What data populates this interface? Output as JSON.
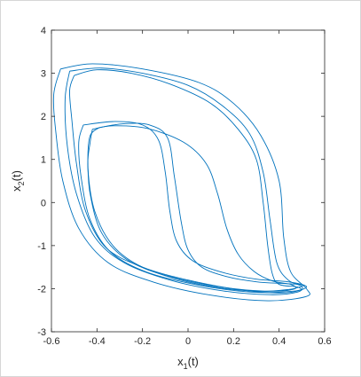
{
  "chart_data": {
    "type": "line",
    "xlabel": "x",
    "xlabel_sub": "1",
    "xlabel_suffix": "(t)",
    "ylabel": "x",
    "ylabel_sub": "2",
    "ylabel_suffix": "(t)",
    "xlim": [
      -0.6,
      0.6
    ],
    "ylim": [
      -3,
      4
    ],
    "xticks": [
      "-0.6",
      "-0.4",
      "-0.2",
      "0",
      "0.2",
      "0.4",
      "0.6"
    ],
    "yticks": [
      "-3",
      "-2",
      "-1",
      "0",
      "1",
      "2",
      "3",
      "4"
    ],
    "grid": false,
    "legend": "none",
    "line_color": "#0072BD",
    "series": [
      {
        "values_xy": [
          [
            -0.39,
            1.74
          ],
          [
            -0.28,
            1.83
          ],
          [
            -0.17,
            1.8
          ],
          [
            -0.09,
            1.5
          ],
          [
            -0.06,
            0.6
          ],
          [
            -0.03,
            -0.45
          ],
          [
            0.0,
            -1.1
          ],
          [
            0.06,
            -1.5
          ],
          [
            0.17,
            -1.72
          ],
          [
            0.3,
            -1.84
          ],
          [
            0.42,
            -1.88
          ],
          [
            0.49,
            -1.9
          ],
          [
            0.5,
            -1.94
          ],
          [
            0.44,
            -2.02
          ],
          [
            0.3,
            -2.06
          ],
          [
            0.1,
            -1.95
          ],
          [
            -0.1,
            -1.7
          ],
          [
            -0.27,
            -1.32
          ],
          [
            -0.38,
            -0.7
          ],
          [
            -0.43,
            0.2
          ],
          [
            -0.44,
            1.0
          ],
          [
            -0.43,
            1.55
          ],
          [
            -0.39,
            1.74
          ]
        ]
      },
      {
        "values_xy": [
          [
            -0.5,
            2.95
          ],
          [
            -0.4,
            3.08
          ],
          [
            -0.25,
            3.0
          ],
          [
            -0.08,
            2.75
          ],
          [
            0.1,
            2.3
          ],
          [
            0.22,
            1.7
          ],
          [
            0.3,
            1.0
          ],
          [
            0.33,
            0.0
          ],
          [
            0.35,
            -1.0
          ],
          [
            0.37,
            -1.65
          ],
          [
            0.4,
            -1.9
          ],
          [
            0.48,
            -1.96
          ],
          [
            0.49,
            -2.04
          ],
          [
            0.4,
            -2.1
          ],
          [
            0.22,
            -2.02
          ],
          [
            0.0,
            -1.8
          ],
          [
            -0.2,
            -1.5
          ],
          [
            -0.36,
            -1.05
          ],
          [
            -0.45,
            -0.2
          ],
          [
            -0.49,
            0.9
          ],
          [
            -0.51,
            1.9
          ],
          [
            -0.52,
            2.6
          ],
          [
            -0.5,
            2.95
          ]
        ]
      },
      {
        "values_xy": [
          [
            -0.52,
            3.05
          ],
          [
            -0.38,
            3.12
          ],
          [
            -0.2,
            3.0
          ],
          [
            0.0,
            2.72
          ],
          [
            0.15,
            2.25
          ],
          [
            0.27,
            1.6
          ],
          [
            0.33,
            0.7
          ],
          [
            0.36,
            -0.4
          ],
          [
            0.39,
            -1.4
          ],
          [
            0.44,
            -1.8
          ],
          [
            0.5,
            -1.95
          ],
          [
            0.48,
            -2.08
          ],
          [
            0.36,
            -2.14
          ],
          [
            0.15,
            -2.05
          ],
          [
            -0.08,
            -1.8
          ],
          [
            -0.28,
            -1.4
          ],
          [
            -0.41,
            -0.8
          ],
          [
            -0.49,
            0.2
          ],
          [
            -0.53,
            1.3
          ],
          [
            -0.54,
            2.4
          ],
          [
            -0.52,
            3.05
          ]
        ]
      },
      {
        "values_xy": [
          [
            -0.56,
            3.1
          ],
          [
            -0.42,
            3.22
          ],
          [
            -0.2,
            3.1
          ],
          [
            0.05,
            2.78
          ],
          [
            0.2,
            2.3
          ],
          [
            0.32,
            1.55
          ],
          [
            0.4,
            0.5
          ],
          [
            0.42,
            -0.8
          ],
          [
            0.45,
            -1.6
          ],
          [
            0.52,
            -2.0
          ],
          [
            0.52,
            -2.18
          ],
          [
            0.35,
            -2.28
          ],
          [
            0.1,
            -2.15
          ],
          [
            -0.15,
            -1.85
          ],
          [
            -0.35,
            -1.4
          ],
          [
            -0.48,
            -0.6
          ],
          [
            -0.55,
            0.5
          ],
          [
            -0.58,
            1.6
          ],
          [
            -0.59,
            2.5
          ],
          [
            -0.56,
            3.1
          ]
        ]
      },
      {
        "values_xy": [
          [
            -0.46,
            1.8
          ],
          [
            -0.32,
            1.88
          ],
          [
            -0.2,
            1.8
          ],
          [
            -0.13,
            1.45
          ],
          [
            -0.1,
            0.7
          ],
          [
            -0.08,
            -0.2
          ],
          [
            -0.05,
            -0.9
          ],
          [
            0.02,
            -1.35
          ],
          [
            0.15,
            -1.62
          ],
          [
            0.3,
            -1.78
          ],
          [
            0.44,
            -1.84
          ],
          [
            0.52,
            -1.95
          ],
          [
            0.46,
            -2.06
          ],
          [
            0.28,
            -2.08
          ],
          [
            0.05,
            -1.92
          ],
          [
            -0.18,
            -1.62
          ],
          [
            -0.34,
            -1.15
          ],
          [
            -0.43,
            -0.4
          ],
          [
            -0.47,
            0.6
          ],
          [
            -0.48,
            1.4
          ],
          [
            -0.46,
            1.8
          ]
        ]
      },
      {
        "values_xy": [
          [
            -0.42,
            1.7
          ],
          [
            -0.33,
            1.78
          ],
          [
            -0.18,
            1.72
          ],
          [
            -0.02,
            1.4
          ],
          [
            0.08,
            0.9
          ],
          [
            0.13,
            0.2
          ],
          [
            0.17,
            -0.6
          ],
          [
            0.22,
            -1.2
          ],
          [
            0.29,
            -1.6
          ],
          [
            0.37,
            -1.82
          ],
          [
            0.45,
            -1.9
          ],
          [
            0.47,
            -2.0
          ],
          [
            0.38,
            -2.06
          ],
          [
            0.2,
            -2.0
          ],
          [
            0.0,
            -1.82
          ],
          [
            -0.2,
            -1.5
          ],
          [
            -0.33,
            -1.0
          ],
          [
            -0.41,
            -0.2
          ],
          [
            -0.44,
            0.8
          ],
          [
            -0.43,
            1.4
          ],
          [
            -0.42,
            1.7
          ]
        ]
      }
    ]
  }
}
